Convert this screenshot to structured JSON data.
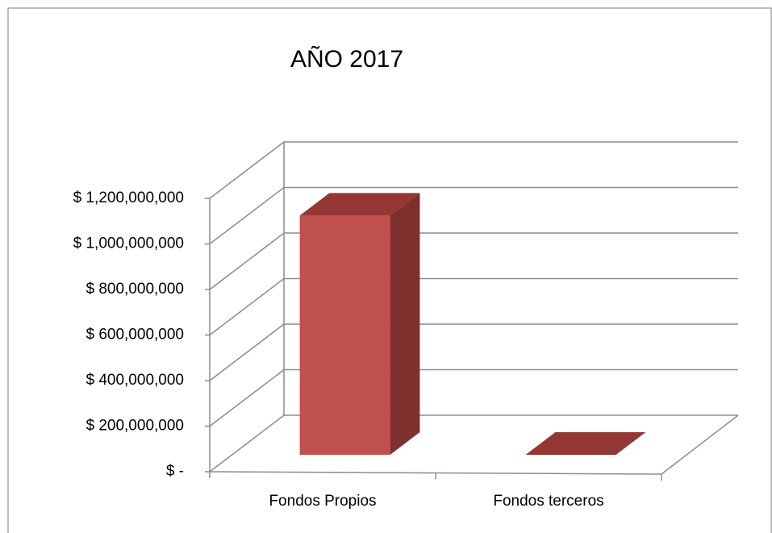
{
  "chart_data": {
    "type": "bar3d",
    "title": "AÑO 2017",
    "categories": [
      "Fondos Propios",
      "Fondos terceros"
    ],
    "values": [
      1050000000,
      0
    ],
    "color": "#c0504d",
    "ylim": [
      0,
      1200000000
    ],
    "yticks": [
      {
        "value": 0,
        "label": "$ -"
      },
      {
        "value": 200000000,
        "label": "$ 200,000,000"
      },
      {
        "value": 400000000,
        "label": "$ 400,000,000"
      },
      {
        "value": 600000000,
        "label": "$ 600,000,000"
      },
      {
        "value": 800000000,
        "label": "$ 800,000,000"
      },
      {
        "value": 1000000000,
        "label": "$ 1,000,000,000"
      },
      {
        "value": 1200000000,
        "label": "$ 1,200,000,000"
      }
    ],
    "grid": true
  }
}
